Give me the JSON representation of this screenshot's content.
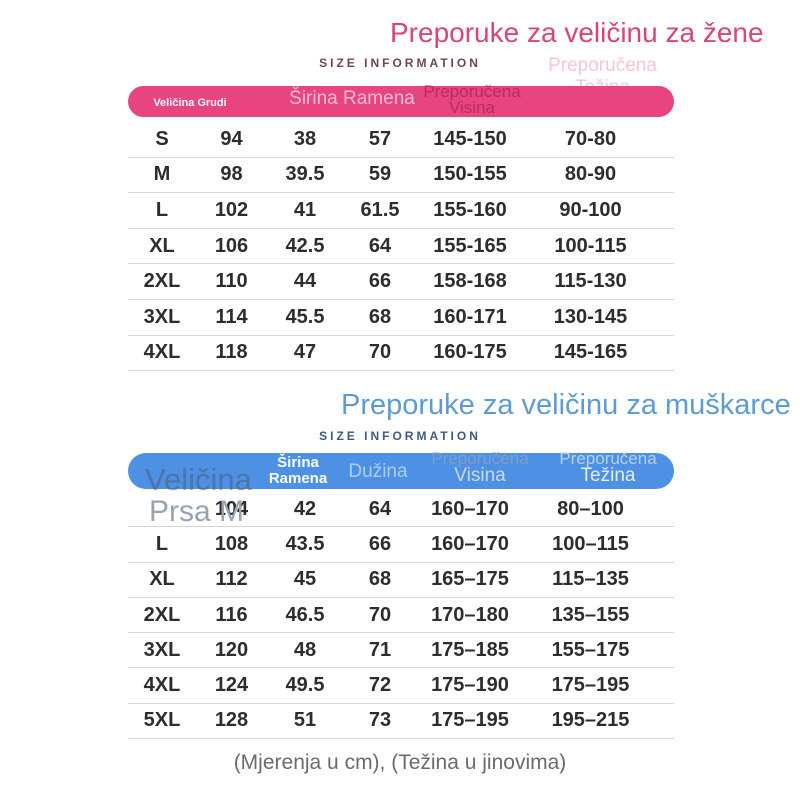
{
  "women": {
    "title": "Preporuke za veličinu za žene",
    "subtitle": "SIZE INFORMATION",
    "header": {
      "size_chest": "Veličina Grudi",
      "shoulder_width": "Širina Ramena",
      "height_line1": "Preporučena",
      "height_line2": "Visina",
      "weight_ghost_line1": "Preporučena",
      "weight_ghost_line2": "Težina"
    },
    "rows": [
      [
        "S",
        "94",
        "38",
        "57",
        "145-150",
        "70-80"
      ],
      [
        "M",
        "98",
        "39.5",
        "59",
        "150-155",
        "80-90"
      ],
      [
        "L",
        "102",
        "41",
        "61.5",
        "155-160",
        "90-100"
      ],
      [
        "XL",
        "106",
        "42.5",
        "64",
        "155-165",
        "100-115"
      ],
      [
        "2XL",
        "110",
        "44",
        "66",
        "158-168",
        "115-130"
      ],
      [
        "3XL",
        "114",
        "45.5",
        "68",
        "160-171",
        "130-145"
      ],
      [
        "4XL",
        "118",
        "47",
        "70",
        "160-175",
        "145-165"
      ]
    ]
  },
  "men": {
    "title": "Preporuke za veličinu za muškarce",
    "subtitle": "SIZE INFORMATION",
    "header": {
      "size_ghost": "Veličina",
      "shoulder_line1": "Širina",
      "shoulder_line2": "Ramena",
      "length": "Dužina",
      "height_line1": "Preporučena",
      "height_line2": "Visina",
      "weight_line1": "Preporučena",
      "weight_line2": "Težina"
    },
    "row_ghost": "Prsa M",
    "rows": [
      [
        "",
        "104",
        "42",
        "64",
        "160–170",
        "80–100"
      ],
      [
        "L",
        "108",
        "43.5",
        "66",
        "160–170",
        "100–115"
      ],
      [
        "XL",
        "112",
        "45",
        "68",
        "165–175",
        "115–135"
      ],
      [
        "2XL",
        "116",
        "46.5",
        "70",
        "170–180",
        "135–155"
      ],
      [
        "3XL",
        "120",
        "48",
        "71",
        "175–185",
        "155–175"
      ],
      [
        "4XL",
        "124",
        "49.5",
        "72",
        "175–190",
        "175–195"
      ],
      [
        "5XL",
        "128",
        "51",
        "73",
        "175–195",
        "195–215"
      ]
    ]
  },
  "footer_note": "(Mjerenja u cm), (Težina u jinovima)",
  "colors": {
    "women_accent": "#e8447f",
    "women_title": "#d84678",
    "women_dark_label": "#b52d60",
    "women_light_label": "#f4c6d7",
    "women_size_info": "#70435a",
    "men_accent": "#4e90e4",
    "men_title": "#5e9bd3",
    "men_size_info": "#3d5a80",
    "men_light_label": "#aecdf4",
    "ghost_gray": "#97a3ae",
    "row_text": "#2d2d2d",
    "row_line": "#d6d6d6",
    "footer_text": "#6b6b6b"
  }
}
